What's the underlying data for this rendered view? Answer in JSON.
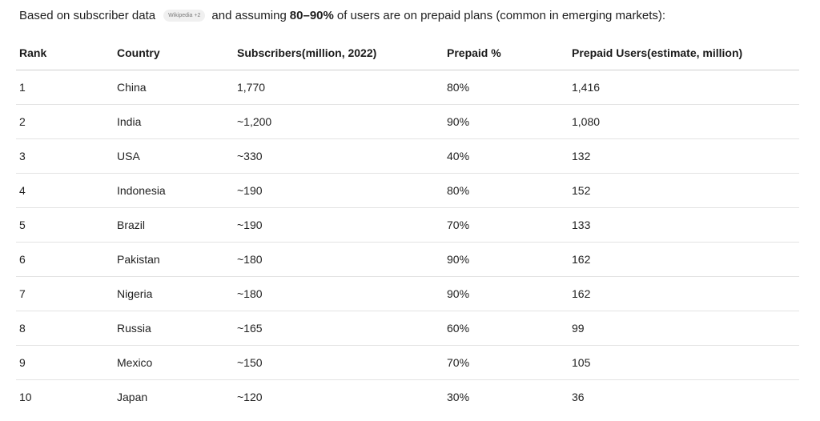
{
  "intro": {
    "prefix": "Based on subscriber data",
    "citation": "Wikipedia +2",
    "middle": "and assuming",
    "bold": "80–90%",
    "suffix": "of users are on prepaid plans (common in emerging markets):"
  },
  "table": {
    "headers": [
      "Rank",
      "Country",
      "Subscribers(million, 2022)",
      "Prepaid %",
      "Prepaid Users(estimate, million)"
    ],
    "rows": [
      [
        "1",
        "China",
        "1,770",
        "80%",
        "1,416"
      ],
      [
        "2",
        "India",
        "~1,200",
        "90%",
        "1,080"
      ],
      [
        "3",
        "USA",
        "~330",
        "40%",
        "132"
      ],
      [
        "4",
        "Indonesia",
        "~190",
        "80%",
        "152"
      ],
      [
        "5",
        "Brazil",
        "~190",
        "70%",
        "133"
      ],
      [
        "6",
        "Pakistan",
        "~180",
        "90%",
        "162"
      ],
      [
        "7",
        "Nigeria",
        "~180",
        "90%",
        "162"
      ],
      [
        "8",
        "Russia",
        "~165",
        "60%",
        "99"
      ],
      [
        "9",
        "Mexico",
        "~150",
        "70%",
        "105"
      ],
      [
        "10",
        "Japan",
        "~120",
        "30%",
        "36"
      ]
    ]
  }
}
